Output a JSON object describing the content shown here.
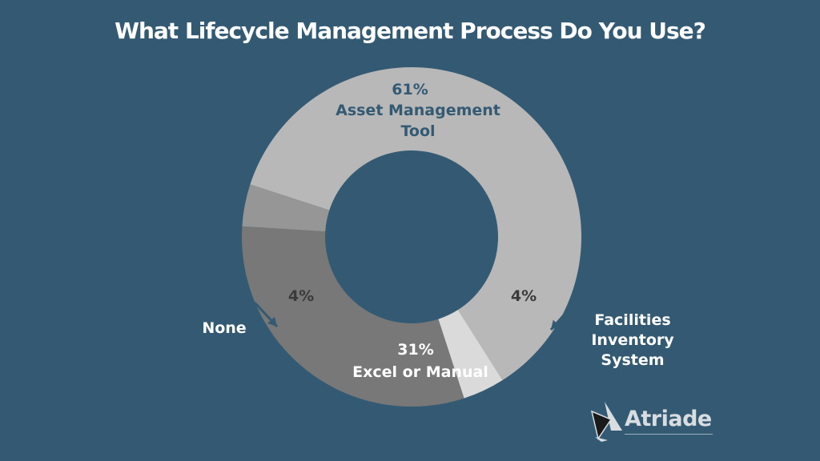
{
  "chart_data": {
    "type": "pie",
    "title": "What Lifecycle Management Process Do You Use?",
    "slices": [
      {
        "label": "Asset Management Tool",
        "value": 61,
        "value_label": "61%",
        "color": "#b8b8b8"
      },
      {
        "label": "Facilities Inventory System",
        "value": 4,
        "value_label": "4%",
        "color": "#dadada"
      },
      {
        "label": "Excel or Manual",
        "value": 31,
        "value_label": "31%",
        "color": "#787878"
      },
      {
        "label": "None",
        "value": 4,
        "value_label": "4%",
        "color": "#969696"
      }
    ],
    "donut": true,
    "background": "#345a73"
  },
  "brand": {
    "logo_text": "Atriade"
  }
}
